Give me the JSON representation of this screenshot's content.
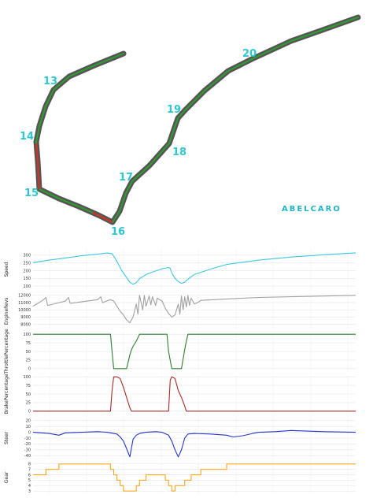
{
  "brand": {
    "text": "ABELCARO",
    "color_a": "#1fb5c4",
    "color_b": "#444444"
  },
  "track_map": {
    "turn_color": "#2ec7cf",
    "line_dark": "#555555",
    "line_green": "#2e9e2e",
    "line_red": "#c0392b",
    "turns": [
      {
        "label": "13"
      },
      {
        "label": "14"
      },
      {
        "label": "15"
      },
      {
        "label": "16"
      },
      {
        "label": "17"
      },
      {
        "label": "18"
      },
      {
        "label": "19"
      },
      {
        "label": "20"
      }
    ]
  },
  "chart_data": [
    {
      "type": "line",
      "ylabel": "Speed",
      "color": "#3cc8e0",
      "ylim": [
        75,
        340
      ],
      "yticks": [
        "300",
        "250",
        "200",
        "150",
        "100"
      ],
      "x": [
        0,
        0.05,
        0.1,
        0.15,
        0.2,
        0.23,
        0.245,
        0.26,
        0.275,
        0.29,
        0.3,
        0.31,
        0.32,
        0.33,
        0.35,
        0.38,
        0.4,
        0.42,
        0.425,
        0.43,
        0.44,
        0.45,
        0.46,
        0.47,
        0.48,
        0.5,
        0.55,
        0.6,
        0.7,
        0.8,
        0.9,
        1.0
      ],
      "values": [
        252,
        268,
        282,
        296,
        307,
        314,
        310,
        260,
        200,
        155,
        125,
        112,
        122,
        148,
        175,
        198,
        212,
        220,
        215,
        185,
        150,
        130,
        118,
        125,
        145,
        175,
        210,
        240,
        268,
        288,
        303,
        315
      ]
    },
    {
      "type": "line",
      "ylabel": "EngineRevs",
      "color": "#a0a0a0",
      "ylim": [
        7300,
        12300
      ],
      "yticks": [
        "12000",
        "11000",
        "10000",
        "9000",
        "8000",
        "7000"
      ],
      "x": [
        0,
        0.03,
        0.04,
        0.045,
        0.1,
        0.11,
        0.115,
        0.2,
        0.21,
        0.215,
        0.24,
        0.25,
        0.26,
        0.27,
        0.28,
        0.29,
        0.3,
        0.31,
        0.32,
        0.325,
        0.33,
        0.34,
        0.345,
        0.35,
        0.36,
        0.365,
        0.37,
        0.38,
        0.385,
        0.4,
        0.41,
        0.42,
        0.43,
        0.44,
        0.45,
        0.455,
        0.46,
        0.465,
        0.47,
        0.475,
        0.48,
        0.485,
        0.49,
        0.5,
        0.51,
        0.52,
        0.6,
        0.7,
        0.8,
        0.9,
        1.0
      ],
      "values": [
        10500,
        11300,
        11700,
        10600,
        11200,
        11700,
        10900,
        11400,
        11800,
        11000,
        11400,
        11200,
        10500,
        9800,
        9300,
        8600,
        8200,
        9000,
        10800,
        9400,
        12000,
        10000,
        12000,
        10500,
        11900,
        10700,
        11800,
        10600,
        11600,
        11200,
        10200,
        9500,
        9000,
        9300,
        10800,
        9400,
        11900,
        10000,
        11800,
        10400,
        12000,
        10600,
        11600,
        10800,
        11000,
        11300,
        11500,
        11700,
        11800,
        11900,
        12000
      ]
    },
    {
      "type": "line",
      "ylabel": "ThrottlePercentage",
      "color": "#2d7d2d",
      "ylim": [
        -5,
        105
      ],
      "yticks": [
        "100",
        "75",
        "50",
        "25",
        "0"
      ],
      "x": [
        0,
        0.24,
        0.245,
        0.25,
        0.26,
        0.28,
        0.29,
        0.3,
        0.305,
        0.31,
        0.32,
        0.33,
        0.34,
        0.4,
        0.415,
        0.42,
        0.43,
        0.44,
        0.45,
        0.46,
        0.47,
        0.475,
        0.48,
        1.0
      ],
      "values": [
        100,
        100,
        50,
        0,
        0,
        0,
        0,
        40,
        55,
        65,
        80,
        100,
        100,
        100,
        100,
        50,
        0,
        0,
        0,
        0,
        55,
        80,
        100,
        100
      ]
    },
    {
      "type": "line",
      "ylabel": "BrakePercentage",
      "color": "#a52a2a",
      "ylim": [
        -5,
        105
      ],
      "yticks": [
        "100",
        "75",
        "50",
        "25",
        "0"
      ],
      "x": [
        0,
        0.24,
        0.245,
        0.25,
        0.26,
        0.27,
        0.28,
        0.29,
        0.3,
        0.305,
        0.42,
        0.425,
        0.43,
        0.44,
        0.45,
        0.46,
        0.47,
        0.475,
        1.0
      ],
      "values": [
        0,
        0,
        60,
        100,
        100,
        95,
        70,
        40,
        10,
        0,
        0,
        90,
        100,
        95,
        60,
        40,
        15,
        0,
        0
      ]
    },
    {
      "type": "line",
      "ylabel": "Steer",
      "color": "#2233cc",
      "ylim": [
        -45,
        25
      ],
      "yticks": [
        "20",
        "10",
        "0",
        "-10",
        "-20",
        "-30",
        "-40"
      ],
      "x": [
        0,
        0.05,
        0.08,
        0.1,
        0.15,
        0.2,
        0.23,
        0.26,
        0.27,
        0.28,
        0.29,
        0.3,
        0.31,
        0.32,
        0.33,
        0.35,
        0.38,
        0.4,
        0.42,
        0.43,
        0.44,
        0.45,
        0.46,
        0.47,
        0.48,
        0.5,
        0.55,
        0.6,
        0.62,
        0.65,
        0.68,
        0.7,
        0.75,
        0.8,
        0.85,
        0.9,
        1.0
      ],
      "values": [
        0,
        -2,
        -5,
        -1,
        0,
        1,
        0,
        -3,
        -8,
        -15,
        -28,
        -42,
        -12,
        -5,
        -2,
        0,
        1,
        0,
        -5,
        -15,
        -30,
        -42,
        -30,
        -10,
        -3,
        -2,
        -3,
        -5,
        -8,
        -6,
        -2,
        0,
        1,
        3,
        2,
        1,
        0
      ]
    },
    {
      "type": "line",
      "ylabel": "Gear",
      "color": "#f5a623",
      "ylim": [
        2.6,
        8.4
      ],
      "yticks": [
        "8",
        "7",
        "6",
        "5",
        "4",
        "3"
      ],
      "x": [
        0,
        0.04,
        0.04,
        0.08,
        0.08,
        0.24,
        0.24,
        0.25,
        0.25,
        0.26,
        0.26,
        0.27,
        0.27,
        0.28,
        0.28,
        0.32,
        0.32,
        0.33,
        0.33,
        0.35,
        0.35,
        0.38,
        0.38,
        0.41,
        0.41,
        0.42,
        0.42,
        0.43,
        0.43,
        0.44,
        0.44,
        0.47,
        0.47,
        0.49,
        0.49,
        0.52,
        0.52,
        0.55,
        0.55,
        0.6,
        0.6,
        0.7,
        0.7,
        1.0
      ],
      "values": [
        6,
        6,
        7,
        7,
        8,
        8,
        7,
        7,
        6,
        6,
        5,
        5,
        4,
        4,
        3,
        3,
        4,
        4,
        5,
        5,
        6,
        6,
        6,
        6,
        5,
        5,
        4,
        4,
        3,
        3,
        4,
        4,
        5,
        5,
        6,
        6,
        7,
        7,
        7,
        7,
        8,
        8,
        8,
        8
      ]
    }
  ]
}
